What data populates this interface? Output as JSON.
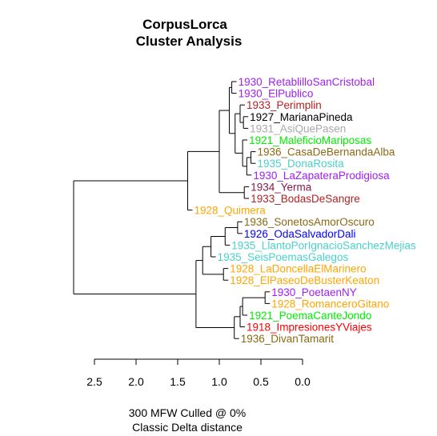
{
  "chart_data": {
    "type": "dendrogram",
    "title": [
      "CorpusLorca",
      "Cluster Analysis"
    ],
    "subtitle": [
      "300 MFW  Culled @ 0%",
      "Classic Delta distance"
    ],
    "xlim": [
      2.5,
      0.0
    ],
    "ticks": [
      "2.5",
      "2.0",
      "1.5",
      "1.0",
      "0.5",
      "0.0"
    ],
    "tick_values": [
      2.5,
      2.0,
      1.5,
      1.0,
      0.5,
      0.0
    ],
    "leaves": [
      {
        "label": "1930_RetablilloSanCristobal",
        "color": "#a020f0"
      },
      {
        "label": "1930_ElPublico",
        "color": "#a020f0"
      },
      {
        "label": "1933_Perimplin",
        "color": "#b22222"
      },
      {
        "label": "1927_MarianaPineda",
        "color": "#000000"
      },
      {
        "label": "1931_AsiQuePasen",
        "color": "#a9a9a9"
      },
      {
        "label": "1921_MaleficioMariposas",
        "color": "#00ee00"
      },
      {
        "label": "1936_CasaDeBernandaAlba",
        "color": "#8b6914"
      },
      {
        "label": "1935_DonaRosita",
        "color": "#48d1cc"
      },
      {
        "label": "1930_LaZapateraProdigiosa",
        "color": "#a020f0"
      },
      {
        "label": "1934_Yerma",
        "color": "#8b1a4a"
      },
      {
        "label": "1933_BodasDeSangre",
        "color": "#b22222"
      },
      {
        "label": "1928_Quimera",
        "color": "#ffa500"
      },
      {
        "label": "1936_SonetosAmorOscuro",
        "color": "#8b6914"
      },
      {
        "label": "1926_OdaSalvadorDali",
        "color": "#0000ff"
      },
      {
        "label": "1935_LlantoPorIgnacioSanchezMejias",
        "color": "#48d1cc"
      },
      {
        "label": "1935_SeisPoemasGalegos",
        "color": "#48d1cc"
      },
      {
        "label": "1928_LaDoncellaElMarinero",
        "color": "#ffa500"
      },
      {
        "label": "1928_ElPaseoDeBusterKeaton",
        "color": "#ffa500"
      },
      {
        "label": "1930_PoetaenNY",
        "color": "#a020f0"
      },
      {
        "label": "1928_RomanceroGitano",
        "color": "#ffa500"
      },
      {
        "label": "1921_PoemaCanteJondo",
        "color": "#00ee00"
      },
      {
        "label": "1918_ImpresionesYViajes",
        "color": "#ff0000"
      },
      {
        "label": "1936_DivanTamarit",
        "color": "#8b6914"
      }
    ],
    "merges": [
      {
        "a": 0,
        "b": 1,
        "h": 0.85
      },
      {
        "a": 6,
        "b": 7,
        "h": 0.62
      },
      {
        "a": 3,
        "b": 4,
        "h": 0.71
      },
      {
        "a": 2,
        "b": "m2",
        "h": 0.75
      },
      {
        "a": "m1",
        "b": 8,
        "h": 0.67
      },
      {
        "a": 5,
        "b": "m4",
        "h": 0.72
      },
      {
        "a": "m3",
        "b": "m5",
        "h": 0.81
      },
      {
        "a": 9,
        "b": 10,
        "h": 0.7
      },
      {
        "a": "m0",
        "b": "m6",
        "h": 0.88
      },
      {
        "a": "m8",
        "b": "m7",
        "h": 1.0
      },
      {
        "a": "m9",
        "b": 11,
        "h": 1.38
      },
      {
        "a": 12,
        "b": 13,
        "h": 0.78
      },
      {
        "a": "m11",
        "b": 14,
        "h": 0.93
      },
      {
        "a": "m12",
        "b": 15,
        "h": 1.1
      },
      {
        "a": 16,
        "b": 17,
        "h": 0.95
      },
      {
        "a": "m13",
        "b": "m14",
        "h": 1.2
      },
      {
        "a": 18,
        "b": 19,
        "h": 0.45
      },
      {
        "a": "m16",
        "b": 20,
        "h": 0.72
      },
      {
        "a": "m17",
        "b": 21,
        "h": 0.75
      },
      {
        "a": "m18",
        "b": 22,
        "h": 0.82
      },
      {
        "a": "m15",
        "b": "m19",
        "h": 1.28
      },
      {
        "a": "m10",
        "b": "m20",
        "h": 2.75
      }
    ]
  }
}
